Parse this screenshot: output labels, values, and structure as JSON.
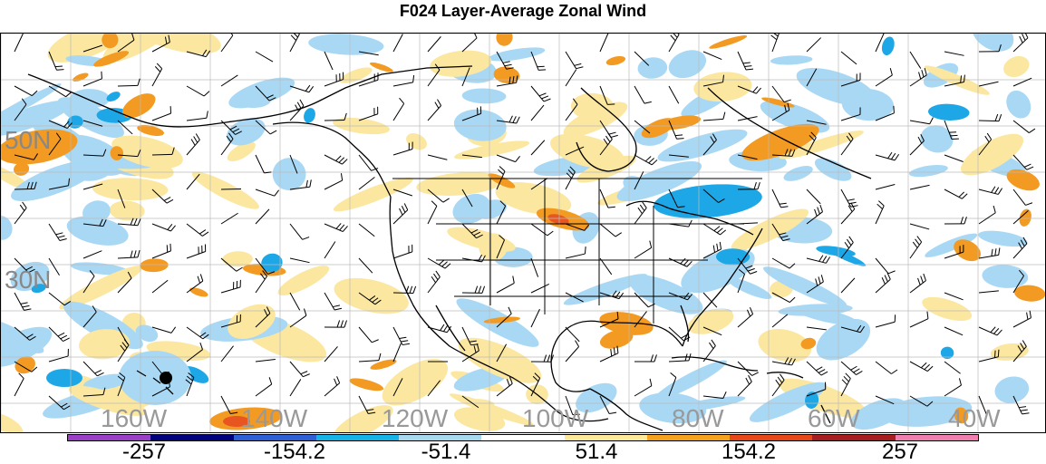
{
  "title": "F024 Layer-Average Zonal Wind",
  "lat_labels": [
    "50N",
    "30N"
  ],
  "lon_labels": [
    "160W",
    "140W",
    "120W",
    "100W",
    "80W",
    "60W",
    "40W"
  ],
  "colorbar": {
    "colors": [
      "#9b3fc8",
      "#00007f",
      "#2f5fd6",
      "#16b3e8",
      "#a8d8f0",
      "#ffffff",
      "#ffe89a",
      "#f5a21e",
      "#e84818",
      "#a81d1d",
      "#f07fb0"
    ],
    "labels": [
      "-257",
      "-154.2",
      "-51.4",
      "51.4",
      "154.2",
      "257"
    ]
  },
  "colors": {
    "light_blue": "#a9d8f5",
    "mid_blue": "#1ea7e6",
    "light_yellow": "#fbe7a0",
    "orange": "#f29a22",
    "red_orange": "#e85520",
    "coast": "#000000",
    "grid": "#bbbbbb",
    "barb": "#000000"
  }
}
